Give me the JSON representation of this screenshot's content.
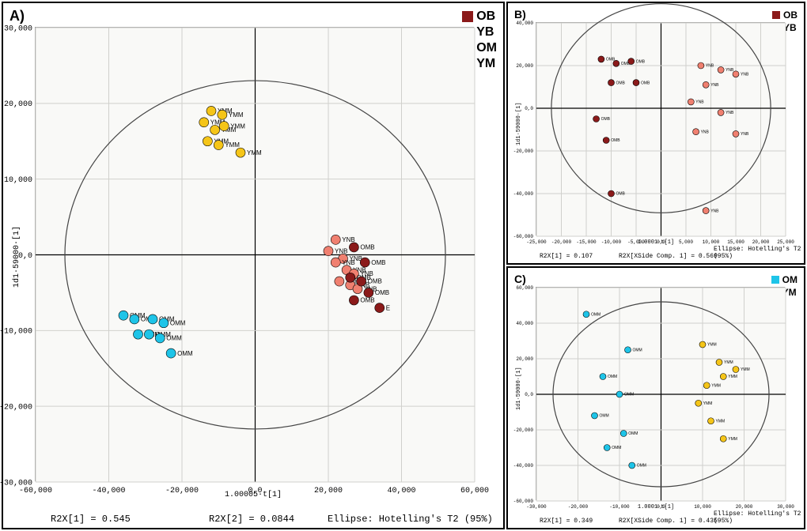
{
  "panelA": {
    "label": "A)",
    "type": "scatter",
    "xlim": [
      -60000,
      60000
    ],
    "ylim": [
      -30000,
      30000
    ],
    "xtick_step": 20000,
    "ytick_step": 10000,
    "xlabel": "1.00005·t[1]",
    "ylabel": "1d1·59000·[1]",
    "background_color": "#f9f9f7",
    "grid_color": "#666666",
    "ellipse_rx": 52000,
    "ellipse_ry": 23000,
    "ellipse_color": "#555555",
    "bottom_left": "R2X[1] = 0.545",
    "bottom_mid": "R2X[2] = 0.0844",
    "bottom_right": "Ellipse: Hotelling's T2 (95%)",
    "tick_fontsize": 10,
    "label_fontsize": 10,
    "point_label_fontsize": 8,
    "legend": [
      {
        "label": "OB",
        "color": "#8b1a1a"
      },
      {
        "label": "YB",
        "color": "#f08070"
      },
      {
        "label": "OM",
        "color": "#1ec4e8"
      },
      {
        "label": "YM",
        "color": "#f5c518"
      }
    ],
    "point_radius": 6,
    "points": [
      {
        "x": -14000,
        "y": 17500,
        "c": "#f5c518",
        "lbl": "YMM"
      },
      {
        "x": -12000,
        "y": 19000,
        "c": "#f5c518",
        "lbl": "YMM"
      },
      {
        "x": -9000,
        "y": 18500,
        "c": "#f5c518",
        "lbl": "YMM"
      },
      {
        "x": -11000,
        "y": 16500,
        "c": "#f5c518",
        "lbl": "YMM"
      },
      {
        "x": -8500,
        "y": 17000,
        "c": "#f5c518",
        "lbl": "YMM"
      },
      {
        "x": -13000,
        "y": 15000,
        "c": "#f5c518",
        "lbl": "YMM"
      },
      {
        "x": -10000,
        "y": 14500,
        "c": "#f5c518",
        "lbl": "YMM"
      },
      {
        "x": -4000,
        "y": 13500,
        "c": "#f5c518",
        "lbl": "YMM"
      },
      {
        "x": 22000,
        "y": 2000,
        "c": "#f08070",
        "lbl": "YNB"
      },
      {
        "x": 20000,
        "y": 500,
        "c": "#f08070",
        "lbl": "YNB"
      },
      {
        "x": 24000,
        "y": -500,
        "c": "#f08070",
        "lbl": "YNB"
      },
      {
        "x": 22000,
        "y": -1000,
        "c": "#f08070",
        "lbl": "YNB"
      },
      {
        "x": 25000,
        "y": -2000,
        "c": "#f08070",
        "lbl": "YNB"
      },
      {
        "x": 27000,
        "y": -2500,
        "c": "#f08070",
        "lbl": "YNB"
      },
      {
        "x": 23000,
        "y": -3500,
        "c": "#f08070",
        "lbl": "YNB"
      },
      {
        "x": 26000,
        "y": -4000,
        "c": "#f08070",
        "lbl": "YNB"
      },
      {
        "x": 28000,
        "y": -4500,
        "c": "#f08070",
        "lbl": "YNB"
      },
      {
        "x": 27000,
        "y": 1000,
        "c": "#8b1a1a",
        "lbl": "OMB"
      },
      {
        "x": 30000,
        "y": -1000,
        "c": "#8b1a1a",
        "lbl": "OMB"
      },
      {
        "x": 26000,
        "y": -3000,
        "c": "#8b1a1a",
        "lbl": "OMB"
      },
      {
        "x": 29000,
        "y": -3500,
        "c": "#8b1a1a",
        "lbl": "OMB"
      },
      {
        "x": 31000,
        "y": -5000,
        "c": "#8b1a1a",
        "lbl": "OMB"
      },
      {
        "x": 27000,
        "y": -6000,
        "c": "#8b1a1a",
        "lbl": "OMB"
      },
      {
        "x": 34000,
        "y": -7000,
        "c": "#8b1a1a",
        "lbl": "E"
      },
      {
        "x": -36000,
        "y": -8000,
        "c": "#1ec4e8",
        "lbl": "OMM"
      },
      {
        "x": -33000,
        "y": -8500,
        "c": "#1ec4e8",
        "lbl": "OMM"
      },
      {
        "x": -28000,
        "y": -8500,
        "c": "#1ec4e8",
        "lbl": "OMM"
      },
      {
        "x": -25000,
        "y": -9000,
        "c": "#1ec4e8",
        "lbl": "OMM"
      },
      {
        "x": -32000,
        "y": -10500,
        "c": "#1ec4e8",
        "lbl": "OMM"
      },
      {
        "x": -29000,
        "y": -10500,
        "c": "#1ec4e8",
        "lbl": "OMM"
      },
      {
        "x": -26000,
        "y": -11000,
        "c": "#1ec4e8",
        "lbl": "OMM"
      },
      {
        "x": -23000,
        "y": -13000,
        "c": "#1ec4e8",
        "lbl": "OMM"
      }
    ]
  },
  "panelB": {
    "label": "B)",
    "type": "scatter",
    "xlim": [
      -25000,
      25000
    ],
    "ylim": [
      -60000,
      40000
    ],
    "xtick_step": 5000,
    "ytick_step": 20000,
    "xlabel": "1.0001·t[1]",
    "ylabel": "1d1·59000·[1]",
    "background_color": "#f9f9f7",
    "grid_color": "#666666",
    "ellipse_rx": 22000,
    "ellipse_ry": 49000,
    "bottom_left": "R2X[1] = 0.107",
    "bottom_mid": "R2X[XSide Comp. 1] = 0.569",
    "bottom_right": "Ellipse: Hotelling's T2 (95%)",
    "legend": [
      {
        "label": "OB",
        "color": "#8b1a1a"
      },
      {
        "label": "YB",
        "color": "#f08070"
      }
    ],
    "point_radius": 4,
    "point_label_fontsize": 5,
    "points": [
      {
        "x": -12000,
        "y": 23000,
        "c": "#8b1a1a",
        "lbl": "OMB"
      },
      {
        "x": -9000,
        "y": 21000,
        "c": "#8b1a1a",
        "lbl": "OMB"
      },
      {
        "x": -6000,
        "y": 22000,
        "c": "#8b1a1a",
        "lbl": "OMB"
      },
      {
        "x": -10000,
        "y": 12000,
        "c": "#8b1a1a",
        "lbl": "OMB"
      },
      {
        "x": -5000,
        "y": 12000,
        "c": "#8b1a1a",
        "lbl": "OMB"
      },
      {
        "x": -13000,
        "y": -5000,
        "c": "#8b1a1a",
        "lbl": "OMB"
      },
      {
        "x": -11000,
        "y": -15000,
        "c": "#8b1a1a",
        "lbl": "OMB"
      },
      {
        "x": -10000,
        "y": -40000,
        "c": "#8b1a1a",
        "lbl": "OMB"
      },
      {
        "x": 8000,
        "y": 20000,
        "c": "#f08070",
        "lbl": "YNB"
      },
      {
        "x": 12000,
        "y": 18000,
        "c": "#f08070",
        "lbl": "YNB"
      },
      {
        "x": 15000,
        "y": 16000,
        "c": "#f08070",
        "lbl": "YNB"
      },
      {
        "x": 9000,
        "y": 11000,
        "c": "#f08070",
        "lbl": "YNB"
      },
      {
        "x": 6000,
        "y": 3000,
        "c": "#f08070",
        "lbl": "YNB"
      },
      {
        "x": 12000,
        "y": -2000,
        "c": "#f08070",
        "lbl": "YNB"
      },
      {
        "x": 7000,
        "y": -11000,
        "c": "#f08070",
        "lbl": "YNB"
      },
      {
        "x": 15000,
        "y": -12000,
        "c": "#f08070",
        "lbl": "YNB"
      },
      {
        "x": 9000,
        "y": -48000,
        "c": "#f08070",
        "lbl": "YNB"
      }
    ]
  },
  "panelC": {
    "label": "C)",
    "type": "scatter",
    "xlim": [
      -30000,
      30000
    ],
    "ylim": [
      -60000,
      60000
    ],
    "xtick_step": 10000,
    "ytick_step": 20000,
    "xlabel": "1.0001·t[1]",
    "ylabel": "1d1·59000·[1]",
    "background_color": "#f9f9f7",
    "grid_color": "#666666",
    "ellipse_rx": 26000,
    "ellipse_ry": 52000,
    "bottom_left": "R2X[1] = 0.349",
    "bottom_mid": "R2X[XSide Comp. 1] = 0.435",
    "bottom_right": "Ellipse: Hotelling's T2 (95%)",
    "legend": [
      {
        "label": "OM",
        "color": "#1ec4e8"
      },
      {
        "label": "YM",
        "color": "#f5c518"
      }
    ],
    "point_radius": 4,
    "point_label_fontsize": 5,
    "points": [
      {
        "x": -18000,
        "y": 45000,
        "c": "#1ec4e8",
        "lbl": "OMM"
      },
      {
        "x": -8000,
        "y": 25000,
        "c": "#1ec4e8",
        "lbl": "OMM"
      },
      {
        "x": -14000,
        "y": 10000,
        "c": "#1ec4e8",
        "lbl": "OMM"
      },
      {
        "x": -10000,
        "y": 0,
        "c": "#1ec4e8",
        "lbl": "OMM"
      },
      {
        "x": -16000,
        "y": -12000,
        "c": "#1ec4e8",
        "lbl": "OMM"
      },
      {
        "x": -9000,
        "y": -22000,
        "c": "#1ec4e8",
        "lbl": "OMM"
      },
      {
        "x": -13000,
        "y": -30000,
        "c": "#1ec4e8",
        "lbl": "OMM"
      },
      {
        "x": -7000,
        "y": -40000,
        "c": "#1ec4e8",
        "lbl": "OMM"
      },
      {
        "x": 10000,
        "y": 28000,
        "c": "#f5c518",
        "lbl": "YMM"
      },
      {
        "x": 14000,
        "y": 18000,
        "c": "#f5c518",
        "lbl": "YMM"
      },
      {
        "x": 18000,
        "y": 14000,
        "c": "#f5c518",
        "lbl": "YMM"
      },
      {
        "x": 15000,
        "y": 10000,
        "c": "#f5c518",
        "lbl": "YMM"
      },
      {
        "x": 11000,
        "y": 5000,
        "c": "#f5c518",
        "lbl": "YMM"
      },
      {
        "x": 9000,
        "y": -5000,
        "c": "#f5c518",
        "lbl": "YMM"
      },
      {
        "x": 12000,
        "y": -15000,
        "c": "#f5c518",
        "lbl": "YMM"
      },
      {
        "x": 15000,
        "y": -25000,
        "c": "#f5c518",
        "lbl": "YMM"
      }
    ]
  }
}
